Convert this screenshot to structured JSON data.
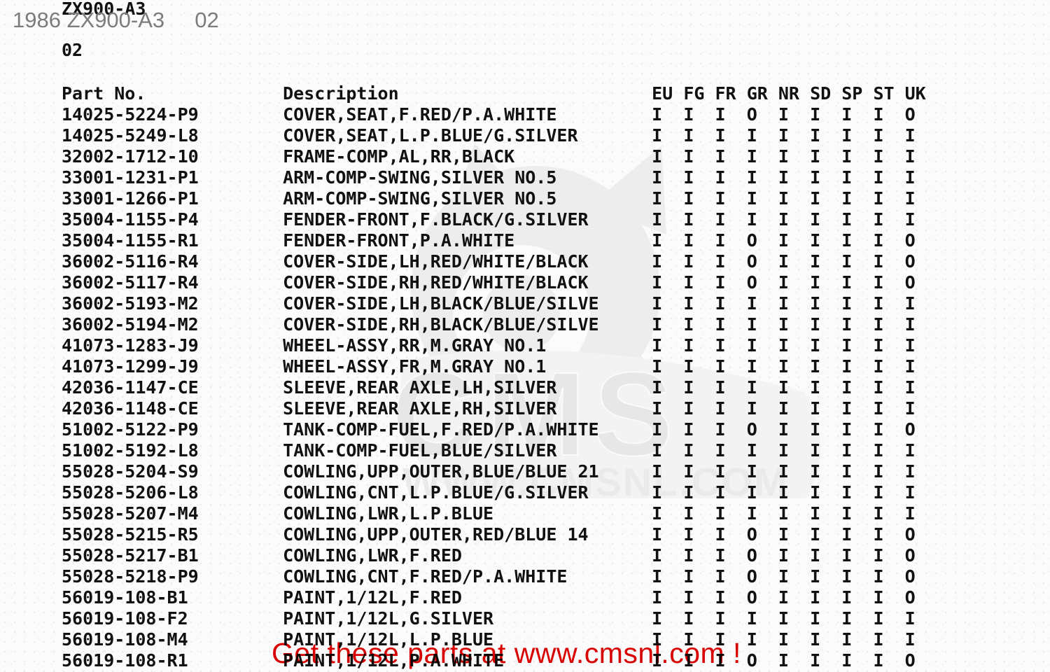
{
  "page": {
    "model_title": "ZX900-A3",
    "page_number": "02",
    "overlay_caption": "1986 ZX900-A3     02",
    "promo_text": "Get these parts at www.cmsnl.com !"
  },
  "watermark": {
    "brand": "CMS",
    "site": "WWW.CMSNL.COM"
  },
  "colors": {
    "promo_red": "#dd0000",
    "overlay_gray": "#7c7c7c",
    "text_black": "#111111",
    "watermark_gray": "#e7e7e7"
  },
  "table": {
    "part_col_header": "Part No.",
    "desc_col_header": "Description",
    "region_headers": [
      "EU",
      "FG",
      "FR",
      "GR",
      "NR",
      "SD",
      "SP",
      "ST",
      "UK"
    ],
    "rows": [
      {
        "part": "14025-5224-P9",
        "desc": "COVER,SEAT,F.RED/P.A.WHITE",
        "avail": [
          "I",
          "I",
          "I",
          "O",
          "I",
          "I",
          "I",
          "I",
          "O"
        ]
      },
      {
        "part": "14025-5249-L8",
        "desc": "COVER,SEAT,L.P.BLUE/G.SILVER",
        "avail": [
          "I",
          "I",
          "I",
          "I",
          "I",
          "I",
          "I",
          "I",
          "I"
        ]
      },
      {
        "part": "32002-1712-10",
        "desc": "FRAME-COMP,AL,RR,BLACK",
        "avail": [
          "I",
          "I",
          "I",
          "I",
          "I",
          "I",
          "I",
          "I",
          "I"
        ]
      },
      {
        "part": "33001-1231-P1",
        "desc": "ARM-COMP-SWING,SILVER NO.5",
        "avail": [
          "I",
          "I",
          "I",
          "I",
          "I",
          "I",
          "I",
          "I",
          "I"
        ]
      },
      {
        "part": "33001-1266-P1",
        "desc": "ARM-COMP-SWING,SILVER NO.5",
        "avail": [
          "I",
          "I",
          "I",
          "I",
          "I",
          "I",
          "I",
          "I",
          "I"
        ]
      },
      {
        "part": "35004-1155-P4",
        "desc": "FENDER-FRONT,F.BLACK/G.SILVER",
        "avail": [
          "I",
          "I",
          "I",
          "I",
          "I",
          "I",
          "I",
          "I",
          "I"
        ]
      },
      {
        "part": "35004-1155-R1",
        "desc": "FENDER-FRONT,P.A.WHITE",
        "avail": [
          "I",
          "I",
          "I",
          "O",
          "I",
          "I",
          "I",
          "I",
          "O"
        ]
      },
      {
        "part": "36002-5116-R4",
        "desc": "COVER-SIDE,LH,RED/WHITE/BLACK",
        "avail": [
          "I",
          "I",
          "I",
          "O",
          "I",
          "I",
          "I",
          "I",
          "O"
        ]
      },
      {
        "part": "36002-5117-R4",
        "desc": "COVER-SIDE,RH,RED/WHITE/BLACK",
        "avail": [
          "I",
          "I",
          "I",
          "O",
          "I",
          "I",
          "I",
          "I",
          "O"
        ]
      },
      {
        "part": "36002-5193-M2",
        "desc": "COVER-SIDE,LH,BLACK/BLUE/SILVE",
        "avail": [
          "I",
          "I",
          "I",
          "I",
          "I",
          "I",
          "I",
          "I",
          "I"
        ]
      },
      {
        "part": "36002-5194-M2",
        "desc": "COVER-SIDE,RH,BLACK/BLUE/SILVE",
        "avail": [
          "I",
          "I",
          "I",
          "I",
          "I",
          "I",
          "I",
          "I",
          "I"
        ]
      },
      {
        "part": "41073-1283-J9",
        "desc": "WHEEL-ASSY,RR,M.GRAY NO.1",
        "avail": [
          "I",
          "I",
          "I",
          "I",
          "I",
          "I",
          "I",
          "I",
          "I"
        ]
      },
      {
        "part": "41073-1299-J9",
        "desc": "WHEEL-ASSY,FR,M.GRAY NO.1",
        "avail": [
          "I",
          "I",
          "I",
          "I",
          "I",
          "I",
          "I",
          "I",
          "I"
        ]
      },
      {
        "part": "42036-1147-CE",
        "desc": "SLEEVE,REAR AXLE,LH,SILVER",
        "avail": [
          "I",
          "I",
          "I",
          "I",
          "I",
          "I",
          "I",
          "I",
          "I"
        ]
      },
      {
        "part": "42036-1148-CE",
        "desc": "SLEEVE,REAR AXLE,RH,SILVER",
        "avail": [
          "I",
          "I",
          "I",
          "I",
          "I",
          "I",
          "I",
          "I",
          "I"
        ]
      },
      {
        "part": "51002-5122-P9",
        "desc": "TANK-COMP-FUEL,F.RED/P.A.WHITE",
        "avail": [
          "I",
          "I",
          "I",
          "O",
          "I",
          "I",
          "I",
          "I",
          "O"
        ]
      },
      {
        "part": "51002-5192-L8",
        "desc": "TANK-COMP-FUEL,BLUE/SILVER",
        "avail": [
          "I",
          "I",
          "I",
          "I",
          "I",
          "I",
          "I",
          "I",
          "I"
        ]
      },
      {
        "part": "55028-5204-S9",
        "desc": "COWLING,UPP,OUTER,BLUE/BLUE 21",
        "avail": [
          "I",
          "I",
          "I",
          "I",
          "I",
          "I",
          "I",
          "I",
          "I"
        ]
      },
      {
        "part": "55028-5206-L8",
        "desc": "COWLING,CNT,L.P.BLUE/G.SILVER",
        "avail": [
          "I",
          "I",
          "I",
          "I",
          "I",
          "I",
          "I",
          "I",
          "I"
        ]
      },
      {
        "part": "55028-5207-M4",
        "desc": "COWLING,LWR,L.P.BLUE",
        "avail": [
          "I",
          "I",
          "I",
          "I",
          "I",
          "I",
          "I",
          "I",
          "I"
        ]
      },
      {
        "part": "55028-5215-R5",
        "desc": "COWLING,UPP,OUTER,RED/BLUE 14",
        "avail": [
          "I",
          "I",
          "I",
          "O",
          "I",
          "I",
          "I",
          "I",
          "O"
        ]
      },
      {
        "part": "55028-5217-B1",
        "desc": "COWLING,LWR,F.RED",
        "avail": [
          "I",
          "I",
          "I",
          "O",
          "I",
          "I",
          "I",
          "I",
          "O"
        ]
      },
      {
        "part": "55028-5218-P9",
        "desc": "COWLING,CNT,F.RED/P.A.WHITE",
        "avail": [
          "I",
          "I",
          "I",
          "O",
          "I",
          "I",
          "I",
          "I",
          "O"
        ]
      },
      {
        "part": "56019-108-B1",
        "desc": "PAINT,1/12L,F.RED",
        "avail": [
          "I",
          "I",
          "I",
          "O",
          "I",
          "I",
          "I",
          "I",
          "O"
        ]
      },
      {
        "part": "56019-108-F2",
        "desc": "PAINT,1/12L,G.SILVER",
        "avail": [
          "I",
          "I",
          "I",
          "I",
          "I",
          "I",
          "I",
          "I",
          "I"
        ]
      },
      {
        "part": "56019-108-M4",
        "desc": "PAINT,1/12L,L.P.BLUE",
        "avail": [
          "I",
          "I",
          "I",
          "I",
          "I",
          "I",
          "I",
          "I",
          "I"
        ]
      },
      {
        "part": "56019-108-R1",
        "desc": "PAINT,1/12L,P.A.WHITE",
        "avail": [
          "I",
          "I",
          "I",
          "O",
          "I",
          "I",
          "I",
          "I",
          "O"
        ]
      }
    ]
  }
}
